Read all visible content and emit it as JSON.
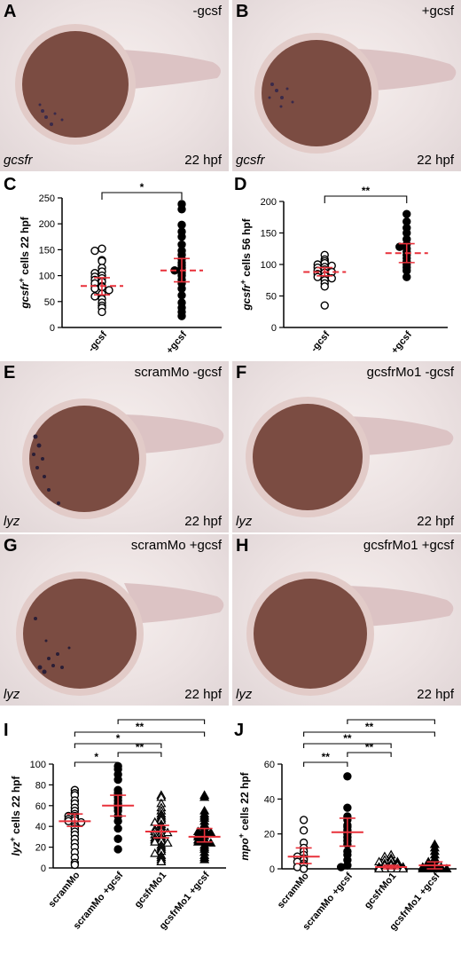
{
  "panels": {
    "A": {
      "letter": "A",
      "condition": "-gcsf",
      "gene": "gcsfr",
      "stage": "22 hpf"
    },
    "B": {
      "letter": "B",
      "condition": "+gcsf",
      "gene": "gcsfr",
      "stage": "22 hpf"
    },
    "C": {
      "letter": "C"
    },
    "D": {
      "letter": "D"
    },
    "E": {
      "letter": "E",
      "condition": "scramMo -gcsf",
      "gene": "lyz",
      "stage": "22 hpf"
    },
    "F": {
      "letter": "F",
      "condition": "gcsfrMo1 -gcsf",
      "gene": "lyz",
      "stage": "22 hpf"
    },
    "G": {
      "letter": "G",
      "condition": "scramMo +gcsf",
      "gene": "lyz",
      "stage": "22 hpf"
    },
    "H": {
      "letter": "H",
      "condition": "gcsfrMo1 +gcsf",
      "gene": "lyz",
      "stage": "22 hpf"
    },
    "I": {
      "letter": "I"
    },
    "J": {
      "letter": "J"
    }
  },
  "colors": {
    "mean_line": "#e8303a",
    "marker": "#000000",
    "image_bg": "#ece2e2",
    "embryo_yolk": "#7a4a40",
    "stain": "#3a2a4a"
  },
  "chart_data": [
    {
      "id": "C",
      "type": "scatter",
      "ylabel_gene": "gcsfr",
      "ylabel_sup": "+",
      "ylabel_rest": " cells 22 hpf",
      "ylim": [
        0,
        250
      ],
      "yticks": [
        0,
        50,
        100,
        150,
        200,
        250
      ],
      "categories": [
        "-gcsf",
        "+gcsf"
      ],
      "markers": [
        "open-circle",
        "filled-circle"
      ],
      "series": [
        {
          "values": [
            152,
            148,
            130,
            128,
            115,
            108,
            105,
            100,
            98,
            95,
            92,
            88,
            85,
            80,
            78,
            75,
            72,
            65,
            60,
            55,
            48,
            42,
            38,
            30
          ]
        },
        {
          "values": [
            238,
            228,
            198,
            185,
            175,
            160,
            148,
            140,
            132,
            125,
            120,
            115,
            110,
            105,
            100,
            92,
            85,
            75,
            62,
            48,
            38,
            30,
            22
          ]
        }
      ],
      "means": [
        80,
        110
      ],
      "ci": [
        [
          63,
          96
        ],
        [
          88,
          133
        ]
      ],
      "significance": [
        {
          "from": 0,
          "to": 1,
          "label": "*"
        }
      ]
    },
    {
      "id": "D",
      "type": "scatter",
      "ylabel_gene": "gcsfr",
      "ylabel_sup": "+",
      "ylabel_rest": " cells 56 hpf",
      "ylim": [
        0,
        200
      ],
      "yticks": [
        0,
        50,
        100,
        150,
        200
      ],
      "categories": [
        "-gcsf",
        "+gcsf"
      ],
      "markers": [
        "open-circle",
        "filled-circle"
      ],
      "series": [
        {
          "values": [
            115,
            108,
            105,
            102,
            100,
            98,
            96,
            95,
            92,
            90,
            88,
            87,
            85,
            82,
            80,
            78,
            75,
            70,
            65,
            35
          ]
        },
        {
          "values": [
            180,
            168,
            158,
            150,
            140,
            132,
            128,
            125,
            120,
            115,
            110,
            105,
            100,
            95,
            90,
            80
          ]
        }
      ],
      "means": [
        88,
        118
      ],
      "ci": [
        [
          82,
          95
        ],
        [
          103,
          133
        ]
      ],
      "significance": [
        {
          "from": 0,
          "to": 1,
          "label": "**"
        }
      ]
    },
    {
      "id": "I",
      "type": "scatter",
      "ylabel_gene": "lyz",
      "ylabel_sup": "+",
      "ylabel_rest": " cells 22 hpf",
      "ylim": [
        0,
        100
      ],
      "yticks": [
        0,
        20,
        40,
        60,
        80,
        100
      ],
      "categories": [
        "scramMo",
        "scramMo +gcsf",
        "gcsfrMo1",
        "gcsfrMo1 +gcsf"
      ],
      "markers": [
        "open-circle",
        "filled-circle",
        "open-triangle",
        "filled-triangle"
      ],
      "series": [
        {
          "values": [
            75,
            72,
            70,
            65,
            62,
            58,
            55,
            52,
            50,
            50,
            48,
            47,
            46,
            45,
            44,
            42,
            40,
            38,
            35,
            32,
            28,
            24,
            20,
            15,
            10,
            5,
            3
          ]
        },
        {
          "values": [
            98,
            95,
            90,
            85,
            75,
            72,
            70,
            68,
            65,
            62,
            60,
            58,
            55,
            50,
            45,
            38,
            28,
            18
          ]
        },
        {
          "values": [
            70,
            68,
            62,
            58,
            55,
            52,
            50,
            48,
            46,
            44,
            42,
            40,
            38,
            37,
            36,
            35,
            34,
            33,
            32,
            30,
            29,
            28,
            27,
            26,
            25,
            24,
            22,
            20,
            18,
            16,
            14,
            12,
            10,
            8,
            6
          ]
        },
        {
          "values": [
            70,
            68,
            55,
            52,
            50,
            48,
            45,
            42,
            40,
            38,
            36,
            35,
            34,
            33,
            32,
            31,
            30,
            28,
            27,
            26,
            25,
            24,
            22,
            20,
            18,
            15,
            12,
            10,
            8
          ]
        }
      ],
      "means": [
        45,
        60,
        35,
        30
      ],
      "ci": [
        [
          40,
          52
        ],
        [
          50,
          70
        ],
        [
          29,
          41
        ],
        [
          25,
          38
        ]
      ],
      "significance": [
        {
          "from": 0,
          "to": 1,
          "label": "*"
        },
        {
          "from": 1,
          "to": 2,
          "label": "**"
        },
        {
          "from": 0,
          "to": 2,
          "label": "*"
        },
        {
          "from": 0,
          "to": 3,
          "label": "**"
        },
        {
          "from": 1,
          "to": 3,
          "label": "**"
        }
      ]
    },
    {
      "id": "J",
      "type": "scatter",
      "ylabel_gene": "mpo",
      "ylabel_sup": "+",
      "ylabel_rest": " cells 22 hpf",
      "ylim": [
        0,
        60
      ],
      "yticks": [
        0,
        20,
        40,
        60
      ],
      "categories": [
        "scramMo",
        "scramMo +gcsf",
        "gcsfrMo1",
        "gcsfrMo1 +gcsf"
      ],
      "markers": [
        "open-circle",
        "filled-circle",
        "open-triangle",
        "filled-triangle"
      ],
      "series": [
        {
          "values": [
            28,
            22,
            15,
            12,
            10,
            8,
            7,
            6,
            5,
            4,
            3,
            2,
            1,
            0
          ]
        },
        {
          "values": [
            53,
            35,
            30,
            28,
            25,
            24,
            22,
            20,
            18,
            16,
            14,
            10,
            8,
            5,
            2,
            1
          ]
        },
        {
          "values": [
            8,
            7,
            6,
            5,
            5,
            4,
            4,
            3,
            3,
            3,
            2,
            2,
            2,
            1,
            1,
            1,
            1,
            0,
            0,
            0,
            0,
            0,
            0,
            0
          ]
        },
        {
          "values": [
            14,
            12,
            10,
            8,
            6,
            5,
            4,
            3,
            2,
            2,
            1,
            1,
            0,
            0,
            0,
            0,
            0
          ]
        }
      ],
      "means": [
        7,
        21,
        1,
        2
      ],
      "ci": [
        [
          3,
          12
        ],
        [
          13,
          29
        ],
        [
          0,
          2
        ],
        [
          0,
          4
        ]
      ],
      "significance": [
        {
          "from": 0,
          "to": 1,
          "label": "**"
        },
        {
          "from": 1,
          "to": 2,
          "label": "**"
        },
        {
          "from": 0,
          "to": 2,
          "label": "**"
        },
        {
          "from": 0,
          "to": 3,
          "label": "**"
        },
        {
          "from": 1,
          "to": 3,
          "label": "**"
        }
      ]
    }
  ]
}
